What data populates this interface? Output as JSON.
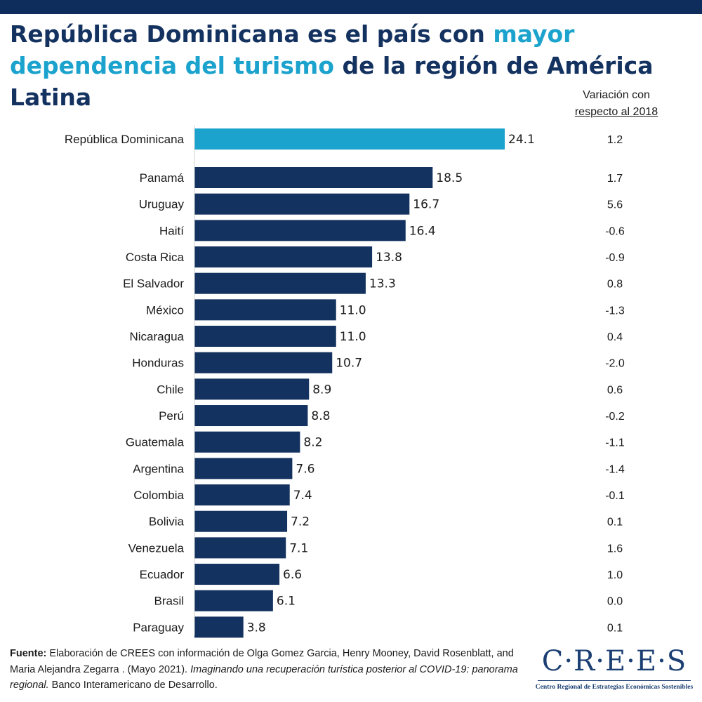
{
  "title": {
    "part1": "República Dominicana es el país con ",
    "highlight1": "mayor",
    "highlight2": "dependencia del turismo",
    "part2": " de la región de América Latina"
  },
  "variation_header": {
    "line1": "Variación con",
    "line2": "respecto al 2018"
  },
  "colors": {
    "highlight": "#1ba3cd",
    "bar": "#143260",
    "header_bar": "#0f2d5c"
  },
  "chart_data": {
    "type": "bar",
    "orientation": "horizontal",
    "categories": [
      "República Dominicana",
      "Panamá",
      "Uruguay",
      "Haití",
      "Costa Rica",
      "El Salvador",
      "México",
      "Nicaragua",
      "Honduras",
      "Chile",
      "Perú",
      "Guatemala",
      "Argentina",
      "Colombia",
      "Bolivia",
      "Venezuela",
      "Ecuador",
      "Brasil",
      "Paraguay"
    ],
    "values": [
      "24.1",
      "18.5",
      "16.7",
      "16.4",
      "13.8",
      "13.3",
      "11.0",
      "11.0",
      "10.7",
      "8.9",
      "8.8",
      "8.2",
      "7.6",
      "7.4",
      "7.2",
      "7.1",
      "6.6",
      "6.1",
      "3.8"
    ],
    "variation": [
      "1.2",
      "1.7",
      "5.6",
      "-0.6",
      "-0.9",
      "0.8",
      "-1.3",
      "0.4",
      "-2.0",
      "0.6",
      "-0.2",
      "-1.1",
      "-1.4",
      "-0.1",
      "0.1",
      "1.6",
      "1.0",
      "0.0",
      "0.1"
    ],
    "highlighted_category": "República Dominicana",
    "xlim": [
      0,
      24.1
    ],
    "grid": false,
    "legend": "none"
  },
  "source": {
    "label": "Fuente:",
    "text1": " Elaboración de CREES con información de Olga Gomez Garcia, Henry Mooney, David Rosenblatt, and Maria Alejandra Zegarra . (Mayo 2021). ",
    "italic": "Imaginando una recuperación turística posterior al COVID-19: panorama regional.",
    "text2": " Banco Interamericano de Desarrollo."
  },
  "logo": {
    "mark": "C·R·E·E·S",
    "subtitle": "Centro Regional de Estrategias Económicas Sostenibles"
  }
}
